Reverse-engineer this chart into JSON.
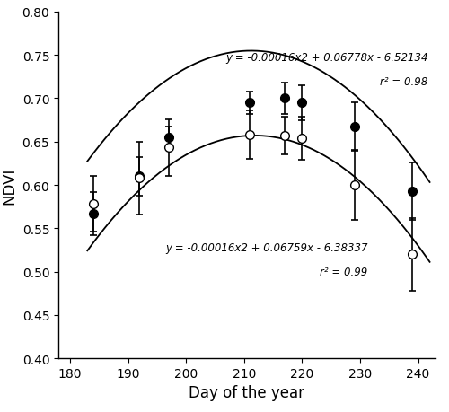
{
  "heated_x": [
    184,
    192,
    197,
    211,
    217,
    220,
    229,
    239
  ],
  "heated_y": [
    0.567,
    0.61,
    0.655,
    0.695,
    0.7,
    0.695,
    0.667,
    0.593
  ],
  "heated_yerr": [
    0.025,
    0.022,
    0.012,
    0.013,
    0.018,
    0.02,
    0.028,
    0.033
  ],
  "unheated_x": [
    184,
    192,
    197,
    211,
    217,
    220,
    229,
    239
  ],
  "unheated_y": [
    0.578,
    0.608,
    0.643,
    0.658,
    0.657,
    0.654,
    0.6,
    0.52
  ],
  "unheated_yerr": [
    0.032,
    0.042,
    0.033,
    0.028,
    0.022,
    0.025,
    0.04,
    0.042
  ],
  "heated_poly": [
    -0.00016,
    0.06778,
    -6.52134
  ],
  "unheated_poly": [
    -0.00016,
    0.06759,
    -6.38337
  ],
  "heated_eq": "y = -0.00016x2 + 0.06778x - 6.52134",
  "heated_r2": "r² = 0.98",
  "unheated_eq": "y = -0.00016x2 + 0.06759x - 6.38337",
  "unheated_r2": "r² = 0.99",
  "xlabel": "Day of the year",
  "ylabel": "NDVI",
  "xlim": [
    178,
    243
  ],
  "ylim": [
    0.4,
    0.8
  ],
  "yticks": [
    0.4,
    0.45,
    0.5,
    0.55,
    0.6,
    0.65,
    0.7,
    0.75,
    0.8
  ],
  "xticks": [
    180,
    190,
    200,
    210,
    220,
    230,
    240
  ],
  "curve_xstart": 183,
  "curve_xend": 242
}
